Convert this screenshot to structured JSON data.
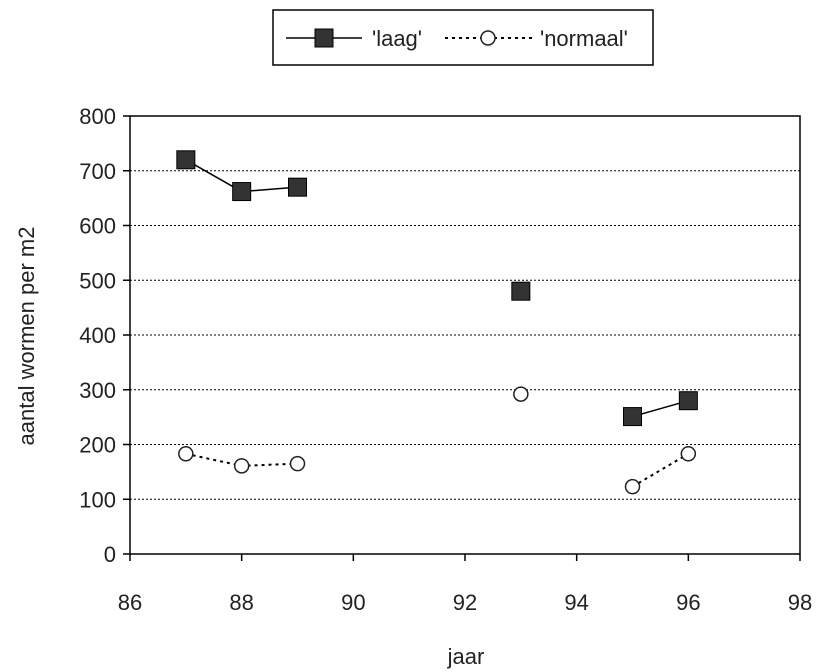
{
  "chart_data": {
    "type": "line",
    "title": "",
    "xlabel": "jaar",
    "ylabel": "aantal wormen per m2",
    "xlim": [
      86,
      98
    ],
    "ylim": [
      0,
      800
    ],
    "xticks": [
      86,
      88,
      90,
      92,
      94,
      96,
      98
    ],
    "yticks": [
      0,
      100,
      200,
      300,
      400,
      500,
      600,
      700,
      800
    ],
    "grid": "horizontal dotted",
    "legend": "top",
    "series": [
      {
        "name": "'laag'",
        "color": "#333333",
        "marker": "square",
        "line": "solid",
        "x": [
          87,
          88,
          89,
          93,
          95,
          96
        ],
        "y": [
          720,
          662,
          670,
          480,
          251,
          280
        ],
        "segments": [
          [
            0,
            2
          ],
          [
            3,
            3
          ],
          [
            4,
            5
          ]
        ]
      },
      {
        "name": "'normaal'",
        "color": "#333333",
        "marker": "circle",
        "line": "dotted",
        "x": [
          87,
          88,
          89,
          93,
          95,
          96
        ],
        "y": [
          183,
          161,
          165,
          292,
          123,
          183
        ],
        "segments": [
          [
            0,
            2
          ],
          [
            3,
            3
          ],
          [
            4,
            5
          ]
        ]
      }
    ]
  }
}
